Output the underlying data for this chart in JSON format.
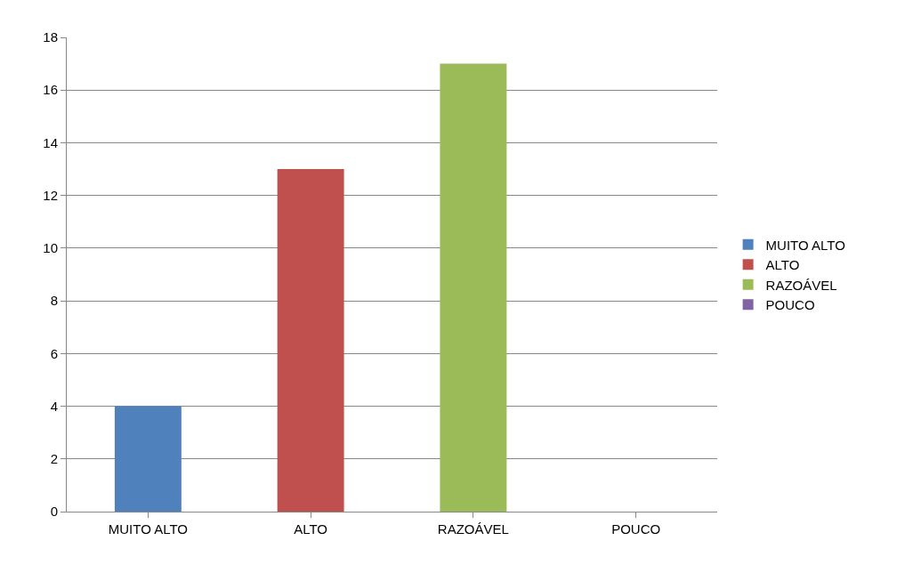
{
  "chart_data": {
    "type": "bar",
    "categories": [
      "MUITO ALTO",
      "ALTO",
      "RAZOÁVEL",
      "POUCO"
    ],
    "series": [
      {
        "name": "MUITO ALTO",
        "color": "#4f81bd",
        "values": [
          4,
          null,
          null,
          null
        ]
      },
      {
        "name": "ALTO",
        "color": "#c0504d",
        "values": [
          null,
          13,
          null,
          null
        ]
      },
      {
        "name": "RAZOÁVEL",
        "color": "#9bbb59",
        "values": [
          null,
          null,
          17,
          null
        ]
      },
      {
        "name": "POUCO",
        "color": "#8064a2",
        "values": [
          null,
          null,
          null,
          0
        ]
      }
    ],
    "ylim": [
      0,
      18
    ],
    "yticks": [
      0,
      2,
      4,
      6,
      8,
      10,
      12,
      14,
      16,
      18
    ],
    "grid": "y",
    "legend": "right"
  }
}
